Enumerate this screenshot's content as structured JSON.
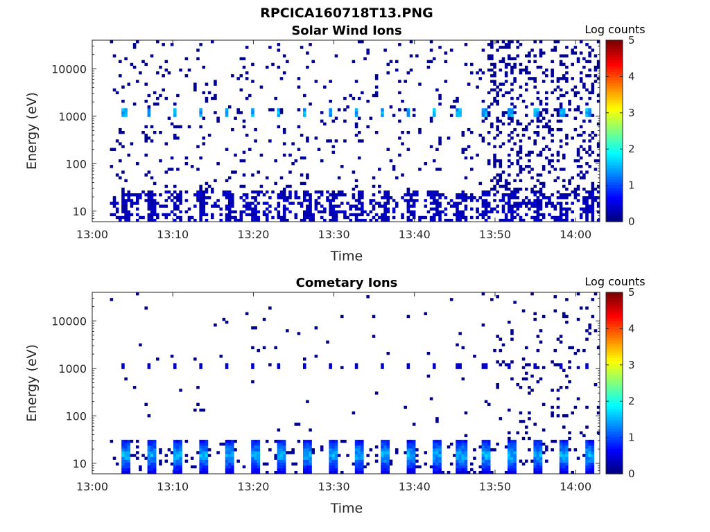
{
  "figure_title": "RPCICA160718T13.PNG",
  "colorbar_title": "Log counts",
  "colorbar_ticks": [
    0,
    1,
    2,
    3,
    4,
    5
  ],
  "chart_data": [
    {
      "type": "heatmap",
      "title": "Solar Wind Ions",
      "xlabel": "Time",
      "ylabel": "Energy (eV)",
      "x_ticks": [
        "13:00",
        "13:10",
        "13:20",
        "13:30",
        "13:40",
        "13:50",
        "14:00"
      ],
      "x_tick_minutes": [
        0,
        10,
        20,
        30,
        40,
        50,
        60
      ],
      "xlim_minutes": [
        0,
        63
      ],
      "y_ticks": [
        "10",
        "100",
        "1000",
        "10000"
      ],
      "y_tick_values": [
        10,
        100,
        1000,
        10000
      ],
      "ylim": [
        6,
        40000
      ],
      "y_scale": "log",
      "clim": [
        0,
        5
      ],
      "colormap": "jet",
      "sweep_period_minutes": 3.2,
      "peak_energy_ev": 1100,
      "peak_log_counts": 1.7,
      "low_energy_band_ev": [
        6,
        25
      ],
      "low_energy_log_counts": 0.3,
      "scatter_log_counts": 0.05
    },
    {
      "type": "heatmap",
      "title": "Cometary Ions",
      "xlabel": "Time",
      "ylabel": "Energy (eV)",
      "x_ticks": [
        "13:00",
        "13:10",
        "13:20",
        "13:30",
        "13:40",
        "13:50",
        "14:00"
      ],
      "x_tick_minutes": [
        0,
        10,
        20,
        30,
        40,
        50,
        60
      ],
      "xlim_minutes": [
        0,
        63
      ],
      "y_ticks": [
        "10",
        "100",
        "1000",
        "10000"
      ],
      "y_tick_values": [
        10,
        100,
        1000,
        10000
      ],
      "ylim": [
        6,
        40000
      ],
      "y_scale": "log",
      "clim": [
        0,
        5
      ],
      "colormap": "jet",
      "sweep_period_minutes": 3.2,
      "peak_energy_ev": 14,
      "peak_log_counts": 1.8,
      "low_energy_band_ev": [
        6,
        30
      ],
      "low_energy_log_counts": 1.2,
      "scatter_log_counts": 0.05
    }
  ]
}
